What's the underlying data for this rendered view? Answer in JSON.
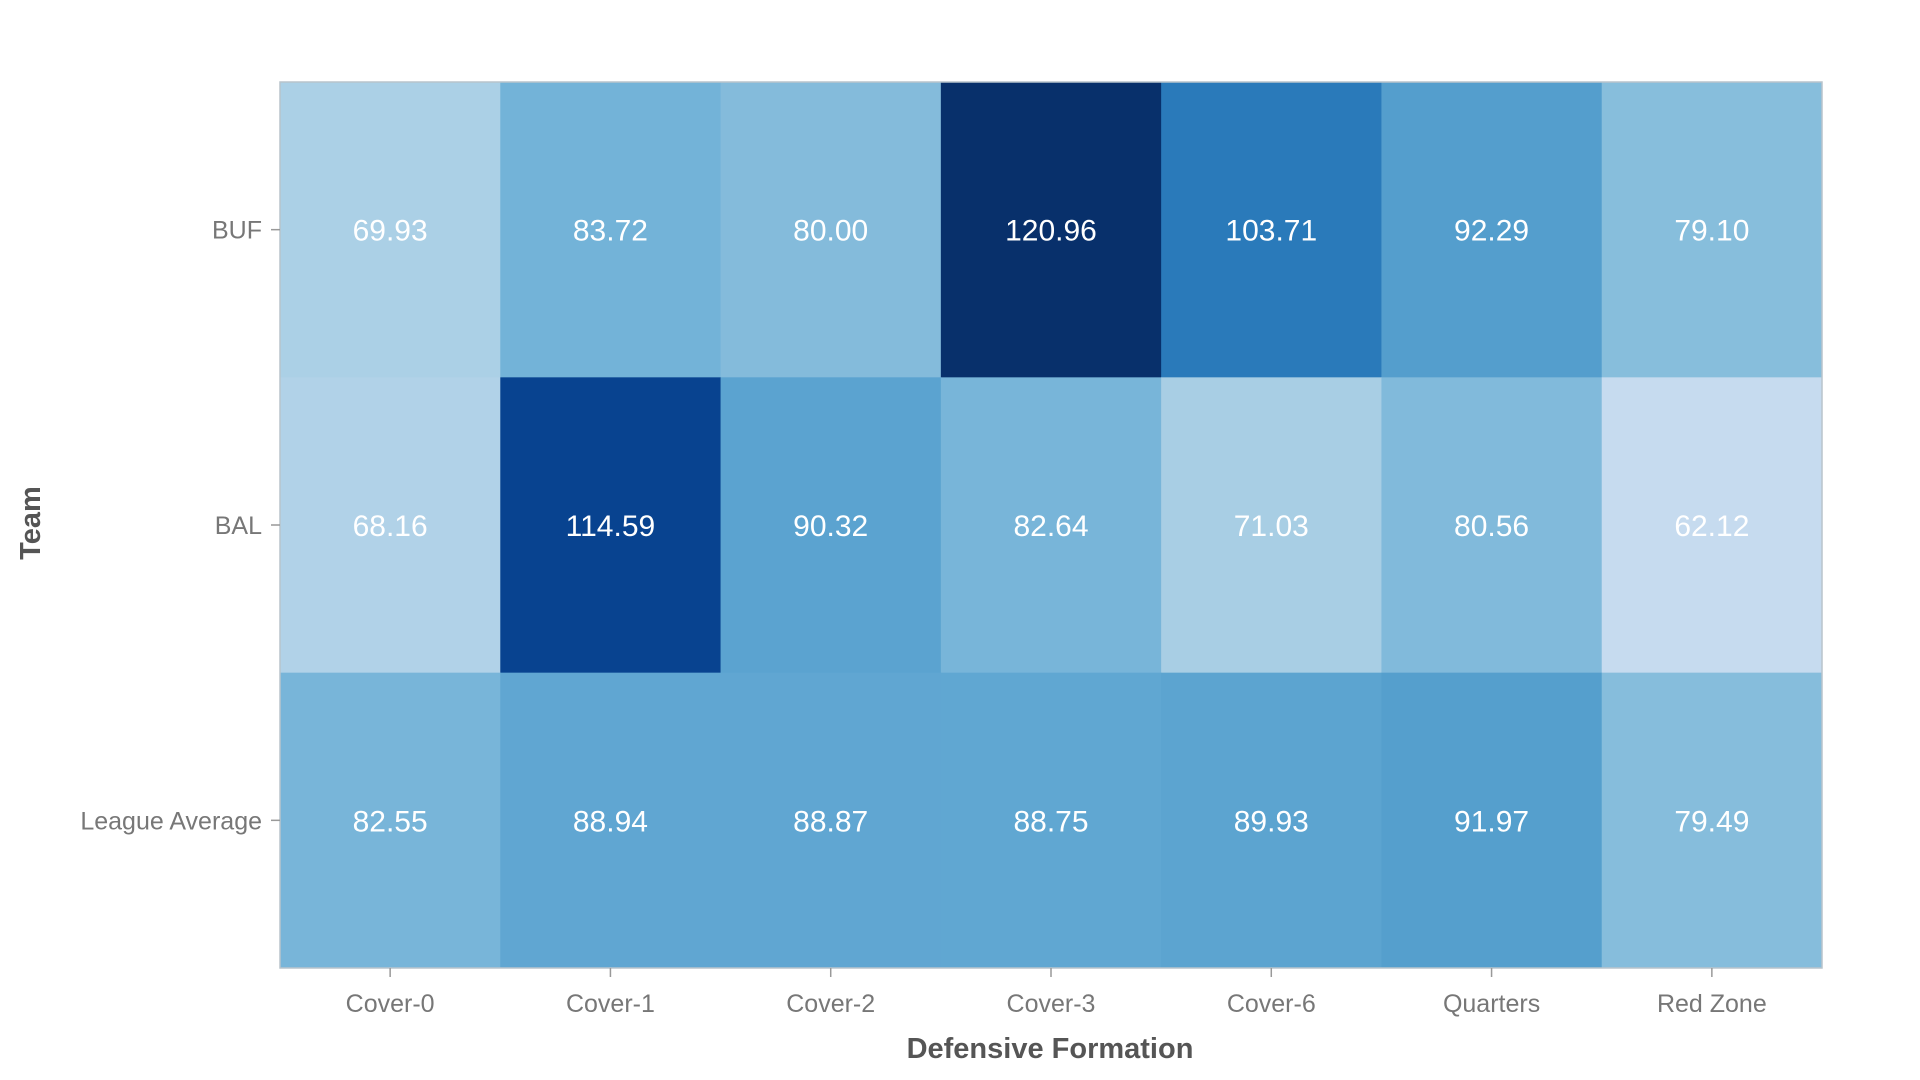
{
  "chart_data": {
    "type": "heatmap",
    "xlabel": "Defensive Formation",
    "ylabel": "Team",
    "x_categories": [
      "Cover-0",
      "Cover-1",
      "Cover-2",
      "Cover-3",
      "Cover-6",
      "Quarters",
      "Red Zone"
    ],
    "y_categories": [
      "BUF",
      "BAL",
      "League Average"
    ],
    "values": [
      [
        69.93,
        83.72,
        80.0,
        120.96,
        103.71,
        92.29,
        79.1
      ],
      [
        68.16,
        114.59,
        90.32,
        82.64,
        71.03,
        80.56,
        62.12
      ],
      [
        82.55,
        88.94,
        88.87,
        88.75,
        89.93,
        91.97,
        79.49
      ]
    ],
    "value_labels": [
      [
        "69.93",
        "83.72",
        "80.00",
        "120.96",
        "103.71",
        "92.29",
        "79.10"
      ],
      [
        "68.16",
        "114.59",
        "90.32",
        "82.64",
        "71.03",
        "80.56",
        "62.12"
      ],
      [
        "82.55",
        "88.94",
        "88.87",
        "88.75",
        "89.93",
        "91.97",
        "79.49"
      ]
    ],
    "colorscale": "Blues",
    "color_low": "#c6dbef",
    "color_high": "#08306b",
    "value_range": [
      62.12,
      120.96
    ],
    "colorbar": false,
    "grid": false
  }
}
